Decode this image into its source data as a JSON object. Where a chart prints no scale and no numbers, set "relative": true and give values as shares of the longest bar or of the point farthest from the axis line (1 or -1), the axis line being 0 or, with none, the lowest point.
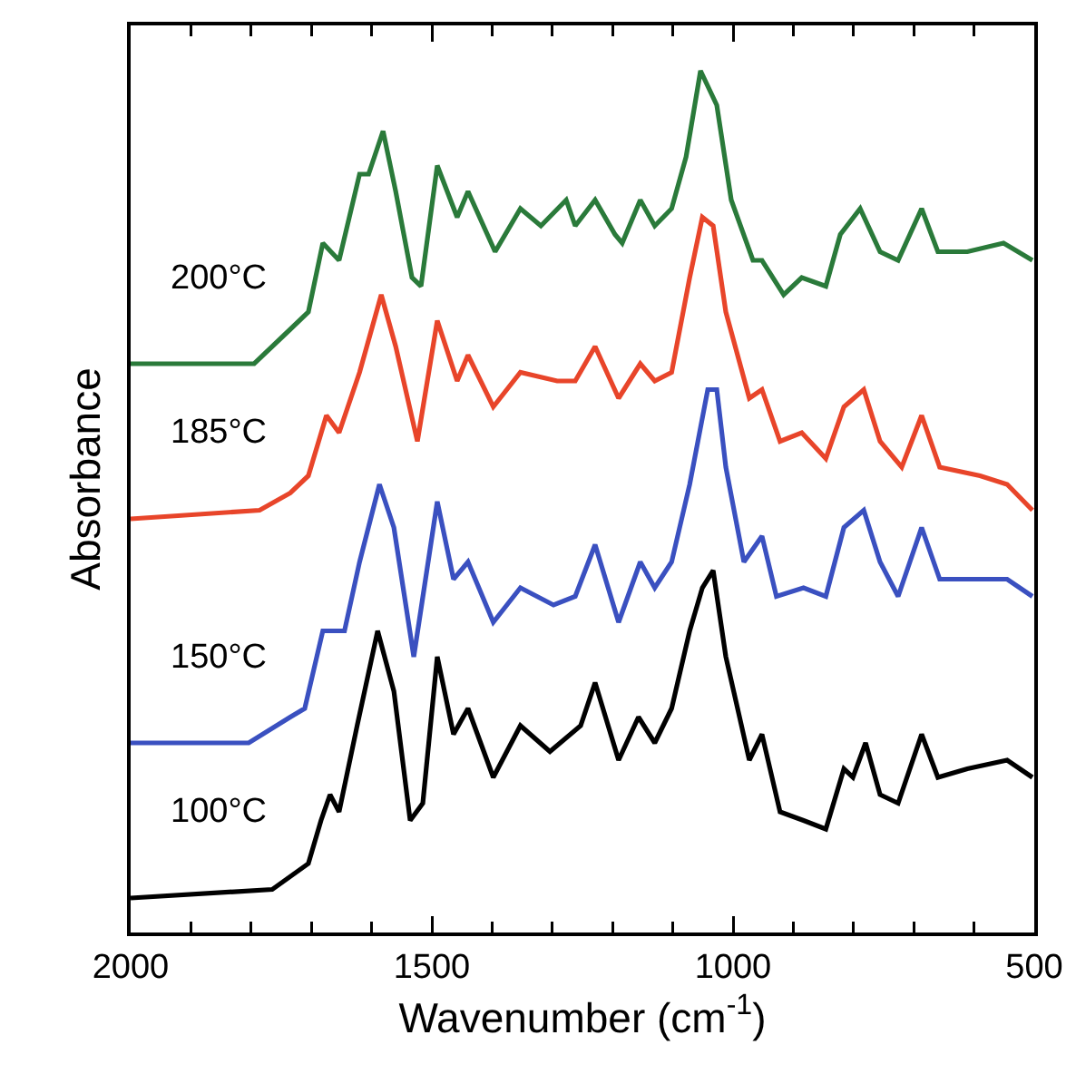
{
  "chart_data": {
    "type": "line",
    "relative": true,
    "xlabel": "Wavenumber (cm$^{-1}$)",
    "ylabel": "Absorbance",
    "xlim": [
      2000,
      500
    ],
    "xticks": [
      2000,
      {
        "value": 1900,
        "label": null
      },
      {
        "value": 1800,
        "label": null
      },
      {
        "value": 1700,
        "label": null
      },
      {
        "value": 1600,
        "label": null
      },
      1500,
      {
        "value": 1400,
        "label": null
      },
      {
        "value": 1300,
        "label": null
      },
      {
        "value": 1200,
        "label": null
      },
      {
        "value": 1100,
        "label": null
      },
      1000,
      {
        "value": 900,
        "label": null
      },
      {
        "value": 800,
        "label": null
      },
      {
        "value": 700,
        "label": null
      },
      {
        "value": 600,
        "label": null
      },
      500
    ],
    "series": [
      {
        "name": "100°C",
        "color": "#000000",
        "x": [
          2000,
          1765,
          1705,
          1684,
          1669,
          1654,
          1624,
          1590,
          1563,
          1536,
          1515,
          1491,
          1464,
          1440,
          1398,
          1353,
          1304,
          1253,
          1229,
          1190,
          1157,
          1130,
          1102,
          1072,
          1051,
          1033,
          1012,
          973,
          952,
          922,
          883,
          846,
          816,
          801,
          780,
          756,
          726,
          687,
          660,
          611,
          545,
          503
        ],
        "values": [
          0.04,
          0.05,
          0.08,
          0.13,
          0.16,
          0.14,
          0.24,
          0.35,
          0.28,
          0.13,
          0.15,
          0.32,
          0.23,
          0.26,
          0.18,
          0.24,
          0.21,
          0.24,
          0.29,
          0.2,
          0.25,
          0.22,
          0.26,
          0.35,
          0.4,
          0.42,
          0.32,
          0.2,
          0.23,
          0.14,
          0.13,
          0.12,
          0.19,
          0.18,
          0.22,
          0.16,
          0.15,
          0.23,
          0.18,
          0.19,
          0.2,
          0.18
        ]
      },
      {
        "name": "150°C",
        "color": "#3a50c0",
        "x": [
          2000,
          1804,
          1735,
          1711,
          1681,
          1645,
          1620,
          1587,
          1563,
          1530,
          1491,
          1464,
          1440,
          1398,
          1353,
          1298,
          1262,
          1229,
          1190,
          1154,
          1130,
          1102,
          1072,
          1042,
          1027,
          1012,
          982,
          952,
          928,
          883,
          846,
          816,
          783,
          756,
          726,
          687,
          657,
          590,
          545,
          503
        ],
        "values": [
          0.22,
          0.22,
          0.25,
          0.26,
          0.35,
          0.35,
          0.43,
          0.52,
          0.47,
          0.32,
          0.5,
          0.41,
          0.43,
          0.36,
          0.4,
          0.38,
          0.39,
          0.45,
          0.36,
          0.43,
          0.4,
          0.43,
          0.52,
          0.63,
          0.63,
          0.54,
          0.43,
          0.46,
          0.39,
          0.4,
          0.39,
          0.47,
          0.49,
          0.43,
          0.39,
          0.47,
          0.41,
          0.41,
          0.41,
          0.39
        ]
      },
      {
        "name": "185°C",
        "color": "#e8452a",
        "x": [
          2000,
          1786,
          1735,
          1705,
          1675,
          1654,
          1620,
          1584,
          1560,
          1524,
          1491,
          1458,
          1440,
          1398,
          1353,
          1292,
          1262,
          1229,
          1190,
          1154,
          1130,
          1102,
          1072,
          1051,
          1033,
          1012,
          973,
          952,
          922,
          886,
          846,
          816,
          783,
          756,
          720,
          687,
          657,
          590,
          545,
          503
        ],
        "values": [
          0.48,
          0.49,
          0.51,
          0.53,
          0.6,
          0.58,
          0.65,
          0.74,
          0.68,
          0.57,
          0.71,
          0.64,
          0.67,
          0.61,
          0.65,
          0.64,
          0.64,
          0.68,
          0.62,
          0.66,
          0.64,
          0.65,
          0.76,
          0.83,
          0.82,
          0.72,
          0.62,
          0.63,
          0.57,
          0.58,
          0.55,
          0.61,
          0.63,
          0.57,
          0.54,
          0.6,
          0.54,
          0.53,
          0.52,
          0.49
        ]
      },
      {
        "name": "200°C",
        "color": "#2a7a3a",
        "x": [
          2000,
          1795,
          1735,
          1705,
          1681,
          1654,
          1620,
          1605,
          1581,
          1560,
          1533,
          1518,
          1491,
          1458,
          1440,
          1395,
          1353,
          1319,
          1277,
          1262,
          1229,
          1196,
          1184,
          1154,
          1130,
          1102,
          1078,
          1054,
          1027,
          1003,
          967,
          952,
          916,
          886,
          846,
          822,
          789,
          756,
          726,
          687,
          660,
          611,
          551,
          503
        ],
        "values": [
          0.66,
          0.66,
          0.7,
          0.72,
          0.8,
          0.78,
          0.88,
          0.88,
          0.93,
          0.86,
          0.76,
          0.75,
          0.89,
          0.83,
          0.86,
          0.79,
          0.84,
          0.82,
          0.85,
          0.82,
          0.85,
          0.81,
          0.8,
          0.85,
          0.82,
          0.84,
          0.9,
          1,
          0.96,
          0.85,
          0.78,
          0.78,
          0.74,
          0.76,
          0.75,
          0.81,
          0.84,
          0.79,
          0.78,
          0.84,
          0.79,
          0.79,
          0.8,
          0.78
        ]
      }
    ]
  }
}
